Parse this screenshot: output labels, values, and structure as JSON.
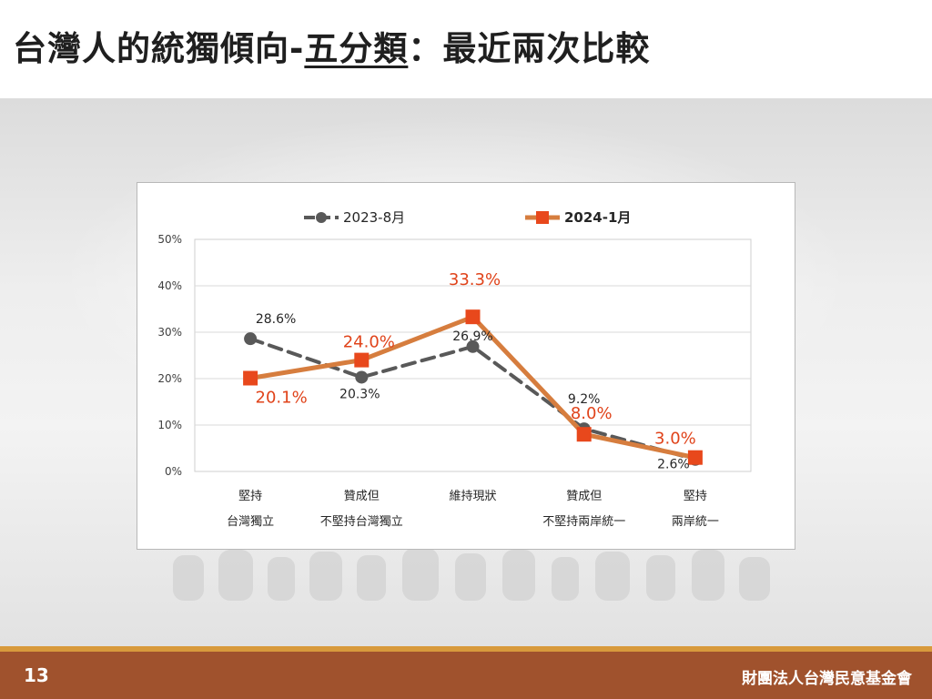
{
  "slide": {
    "title_prefix": "台灣人的統獨傾向-",
    "title_underlined": "五分類",
    "title_suffix": "：最近兩次比較",
    "page_number": "13",
    "organization": "財團法人台灣民意基金會"
  },
  "colors": {
    "footer_bar": "#a0522d",
    "footer_line": "#d89a3c",
    "series_2023": "#595959",
    "series_2024_line": "#d67d3e",
    "series_2024_marker": "#e8481c",
    "label_2024": "#e0431a"
  },
  "chart_data": {
    "type": "line",
    "categories": [
      [
        "堅持",
        "台灣獨立"
      ],
      [
        "贊成但",
        "不堅持台灣獨立"
      ],
      [
        "維持現狀"
      ],
      [
        "贊成但",
        "不堅持兩岸統一"
      ],
      [
        "堅持",
        "兩岸統一"
      ]
    ],
    "series": [
      {
        "name": "2023-8月",
        "values": [
          28.6,
          20.3,
          26.9,
          9.2,
          2.6
        ],
        "labels": [
          "28.6%",
          "20.3%",
          "26.9%",
          "9.2%",
          "2.6%"
        ],
        "style": "dashed",
        "marker": "circle"
      },
      {
        "name": "2024-1月",
        "values": [
          20.1,
          24.0,
          33.3,
          8.0,
          3.0
        ],
        "labels": [
          "20.1%",
          "24.0%",
          "33.3%",
          "8.0%",
          "3.0%"
        ],
        "style": "solid",
        "marker": "square"
      }
    ],
    "yticks": [
      "0%",
      "10%",
      "20%",
      "30%",
      "40%",
      "50%"
    ],
    "ylim": [
      0,
      50
    ],
    "grid": true,
    "legend_position": "top"
  }
}
